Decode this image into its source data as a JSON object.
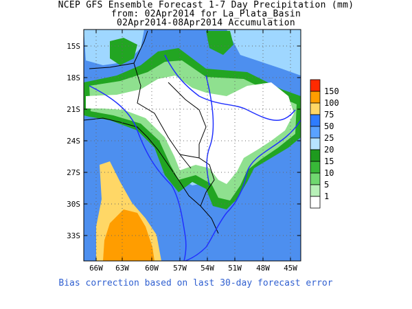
{
  "header": {
    "line1": "NCEP GFS Ensemble Forecast 1-7 Day Precipitation (mm)",
    "line2": "from: 02Apr2014   for La_Plata_Basin",
    "line3": "02Apr2014-08Apr2014 Accumulation"
  },
  "axes": {
    "lat_labels": [
      "15S",
      "18S",
      "21S",
      "24S",
      "27S",
      "30S",
      "33S"
    ],
    "lon_labels": [
      "66W",
      "63W",
      "60W",
      "57W",
      "54W",
      "51W",
      "48W",
      "45W"
    ]
  },
  "legend": {
    "labels": [
      "150",
      "100",
      "75",
      "50",
      "25",
      "20",
      "15",
      "10",
      "5",
      "1"
    ],
    "colors": [
      "#ff2a00",
      "#ff9d00",
      "#ffd766",
      "#2e7cff",
      "#5aa2ff",
      "#b7e3ff",
      "#1e9a1e",
      "#38b838",
      "#70d870",
      "#b8f0b8",
      "#ffffff"
    ]
  },
  "map_colors": {
    "base": "#4d8fef",
    "white": "#ffffff",
    "light_green": "#8fe08f",
    "green": "#22a522",
    "light_blue": "#9fd7ff",
    "yellow": "#ffd766",
    "orange": "#ff9d00",
    "border": "#000000",
    "river": "#2030ff"
  },
  "footer": "Bias correction based on last 30-day forecast error"
}
